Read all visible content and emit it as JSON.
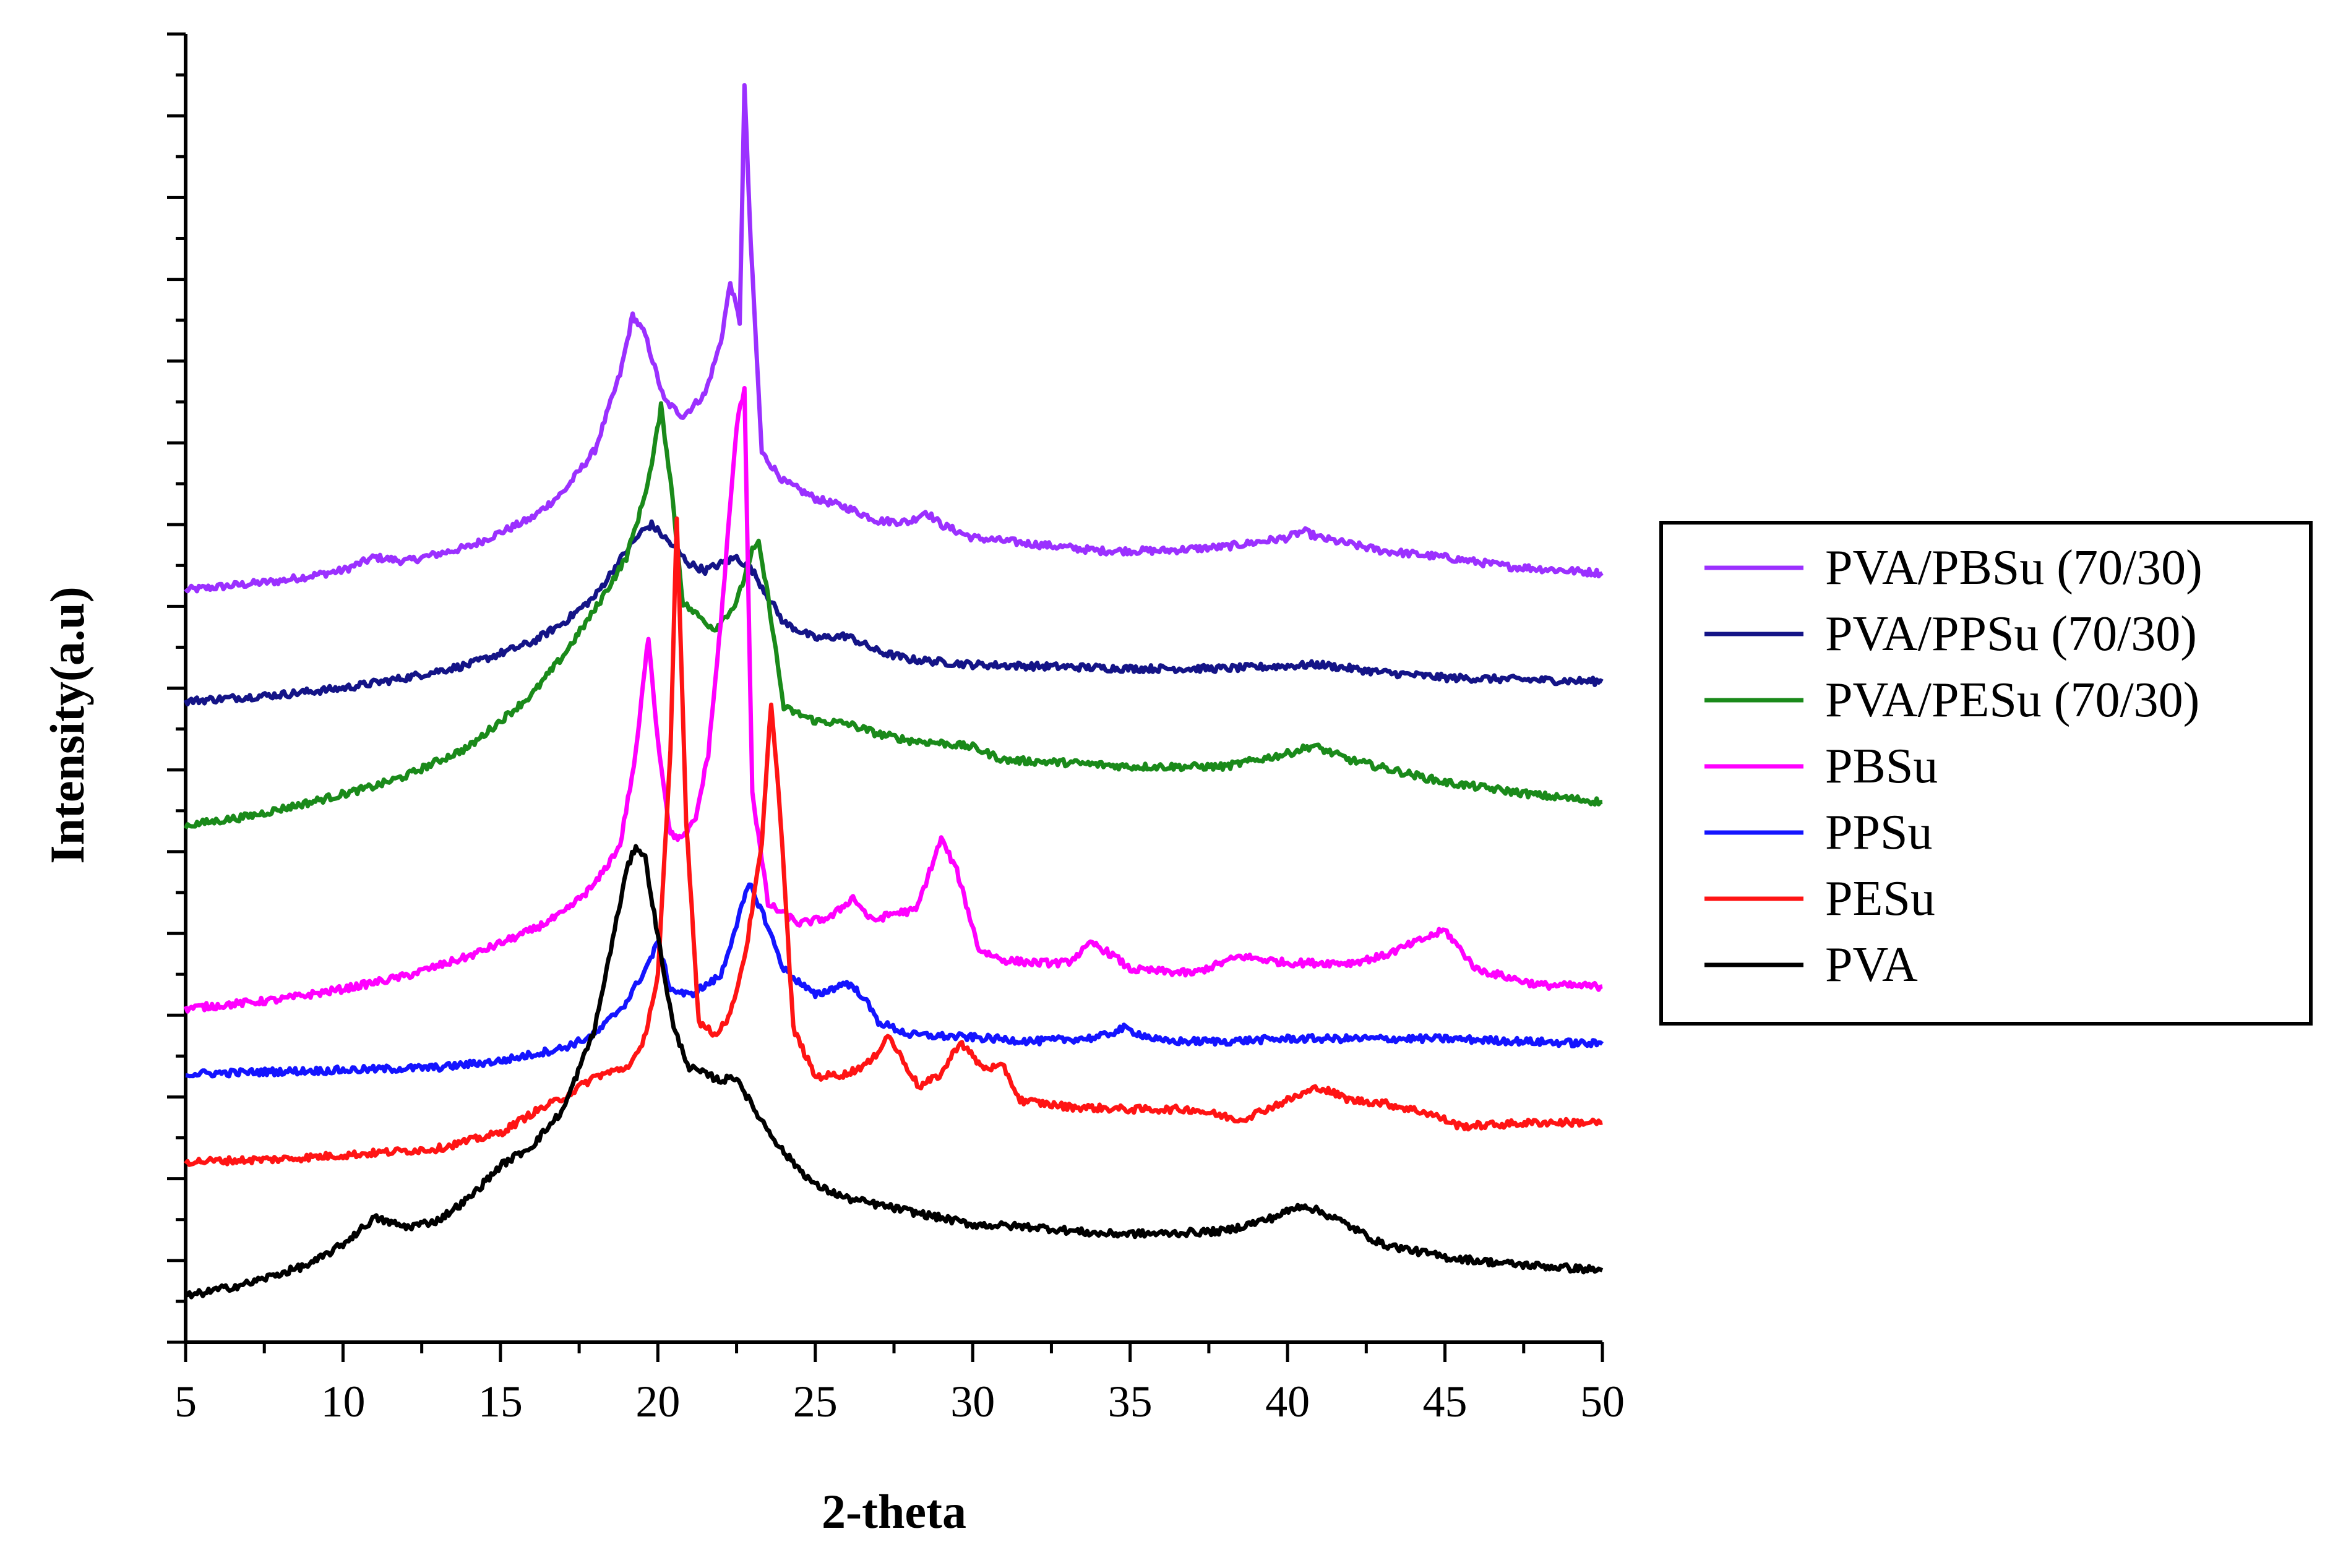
{
  "chart_data": {
    "type": "line",
    "title": "",
    "xlabel": "2-theta",
    "ylabel": "Intensity(a.u)",
    "xlim": [
      5,
      50
    ],
    "ylim": [
      0,
      100
    ],
    "xticks": [
      5,
      10,
      15,
      20,
      25,
      30,
      35,
      40,
      45,
      50
    ],
    "yticks_labeled": false,
    "legend_position": "right",
    "legend": [
      "PVA/PBSu (70/30)",
      "PVA/PPSu (70/30)",
      "PVA/PESu (70/30)",
      "PBSu",
      "PPSu",
      "PESu",
      "PVA"
    ],
    "series": [
      {
        "name": "PVA/PBSu (70/30)",
        "color": "#9b30ff",
        "points": [
          [
            5,
            57.5
          ],
          [
            8,
            58.2
          ],
          [
            10,
            59.0
          ],
          [
            11,
            60.0
          ],
          [
            12,
            59.7
          ],
          [
            14,
            60.8
          ],
          [
            16,
            63.0
          ],
          [
            17,
            65.0
          ],
          [
            18,
            68.2
          ],
          [
            18.8,
            74.0
          ],
          [
            19.2,
            78.5
          ],
          [
            19.6,
            77.0
          ],
          [
            20.2,
            72.0
          ],
          [
            20.8,
            70.8
          ],
          [
            21.5,
            72.5
          ],
          [
            22.0,
            76.5
          ],
          [
            22.3,
            81.0
          ],
          [
            22.6,
            78.0
          ],
          [
            22.75,
            96.0
          ],
          [
            22.95,
            84.0
          ],
          [
            23.3,
            68.0
          ],
          [
            24,
            65.8
          ],
          [
            25,
            64.5
          ],
          [
            26,
            63.8
          ],
          [
            27,
            62.8
          ],
          [
            28,
            62.7
          ],
          [
            28.5,
            63.5
          ],
          [
            29,
            62.5
          ],
          [
            30,
            61.5
          ],
          [
            32,
            61.0
          ],
          [
            34,
            60.5
          ],
          [
            36,
            60.5
          ],
          [
            38,
            60.8
          ],
          [
            40,
            61.5
          ],
          [
            40.5,
            62.0
          ],
          [
            41,
            61.5
          ],
          [
            43,
            60.5
          ],
          [
            45,
            60.0
          ],
          [
            47,
            59.3
          ],
          [
            50,
            58.8
          ]
        ]
      },
      {
        "name": "PVA/PPSu (70/30)",
        "color": "#141487",
        "points": [
          [
            5,
            49.0
          ],
          [
            8,
            49.5
          ],
          [
            10,
            50.0
          ],
          [
            12,
            50.8
          ],
          [
            14,
            51.8
          ],
          [
            16,
            53.5
          ],
          [
            17,
            55.0
          ],
          [
            18,
            57.0
          ],
          [
            19,
            60.5
          ],
          [
            19.5,
            62.0
          ],
          [
            19.8,
            62.5
          ],
          [
            20.3,
            61.3
          ],
          [
            21,
            59.5
          ],
          [
            21.5,
            59.0
          ],
          [
            22.0,
            59.5
          ],
          [
            22.5,
            60.0
          ],
          [
            23.0,
            59.0
          ],
          [
            23.5,
            57.0
          ],
          [
            24,
            55.0
          ],
          [
            25,
            53.8
          ],
          [
            26,
            54.0
          ],
          [
            27,
            52.8
          ],
          [
            28,
            52.2
          ],
          [
            30,
            51.8
          ],
          [
            35,
            51.5
          ],
          [
            38,
            51.5
          ],
          [
            40,
            51.7
          ],
          [
            41,
            51.8
          ],
          [
            43,
            51.2
          ],
          [
            45,
            50.8
          ],
          [
            50,
            50.5
          ]
        ]
      },
      {
        "name": "PVA/PESu (70/30)",
        "color": "#1a8a1a",
        "points": [
          [
            5,
            39.5
          ],
          [
            7,
            40.2
          ],
          [
            9,
            41.3
          ],
          [
            11,
            42.5
          ],
          [
            12,
            43.3
          ],
          [
            14,
            45.5
          ],
          [
            15,
            47.5
          ],
          [
            16,
            49.5
          ],
          [
            17,
            52.5
          ],
          [
            18,
            56.0
          ],
          [
            19,
            60.0
          ],
          [
            19.5,
            64.0
          ],
          [
            19.8,
            67.0
          ],
          [
            20.1,
            71.5
          ],
          [
            20.4,
            66.0
          ],
          [
            20.8,
            56.5
          ],
          [
            21.3,
            55.5
          ],
          [
            21.8,
            54.5
          ],
          [
            22.5,
            56.5
          ],
          [
            23.0,
            60.5
          ],
          [
            23.2,
            61.0
          ],
          [
            23.5,
            57.0
          ],
          [
            24,
            48.5
          ],
          [
            25,
            47.5
          ],
          [
            26,
            47.3
          ],
          [
            27,
            46.5
          ],
          [
            28,
            46.0
          ],
          [
            29,
            45.8
          ],
          [
            30,
            45.5
          ],
          [
            31,
            44.5
          ],
          [
            33,
            44.3
          ],
          [
            35,
            44.0
          ],
          [
            38,
            44.0
          ],
          [
            40,
            45.0
          ],
          [
            40.8,
            45.6
          ],
          [
            42,
            44.5
          ],
          [
            45,
            42.8
          ],
          [
            48,
            41.8
          ],
          [
            50,
            41.3
          ]
        ]
      },
      {
        "name": "PBSu",
        "color": "#ff00ff",
        "points": [
          [
            5,
            25.5
          ],
          [
            8,
            26.2
          ],
          [
            10,
            27.0
          ],
          [
            12,
            28.0
          ],
          [
            14,
            29.5
          ],
          [
            16,
            31.5
          ],
          [
            17,
            32.8
          ],
          [
            18,
            35.0
          ],
          [
            18.8,
            38.0
          ],
          [
            19.3,
            45.0
          ],
          [
            19.7,
            54.0
          ],
          [
            20.0,
            46.0
          ],
          [
            20.4,
            38.8
          ],
          [
            20.8,
            38.5
          ],
          [
            21.2,
            40.0
          ],
          [
            21.6,
            45.0
          ],
          [
            22.0,
            55.0
          ],
          [
            22.3,
            64.0
          ],
          [
            22.5,
            70.0
          ],
          [
            22.75,
            73.0
          ],
          [
            23.0,
            42.0
          ],
          [
            23.5,
            33.5
          ],
          [
            24.5,
            32.0
          ],
          [
            25.5,
            32.5
          ],
          [
            26.2,
            34.0
          ],
          [
            26.8,
            32.2
          ],
          [
            27.5,
            32.8
          ],
          [
            28.2,
            33.0
          ],
          [
            29.0,
            38.5
          ],
          [
            29.5,
            36.0
          ],
          [
            30.2,
            30.0
          ],
          [
            31,
            29.2
          ],
          [
            32,
            29.0
          ],
          [
            33,
            29.0
          ],
          [
            33.8,
            30.5
          ],
          [
            34.5,
            29.5
          ],
          [
            35,
            28.5
          ],
          [
            37,
            28.2
          ],
          [
            38.5,
            29.5
          ],
          [
            40,
            29.0
          ],
          [
            42,
            29.0
          ],
          [
            43,
            29.5
          ],
          [
            44.5,
            31.0
          ],
          [
            45,
            31.5
          ],
          [
            46,
            28.5
          ],
          [
            48,
            27.3
          ],
          [
            50,
            27.2
          ]
        ]
      },
      {
        "name": "PPSu",
        "color": "#1414ff",
        "points": [
          [
            5,
            20.5
          ],
          [
            8,
            20.7
          ],
          [
            10,
            20.8
          ],
          [
            13,
            21.0
          ],
          [
            15,
            21.5
          ],
          [
            16,
            22.0
          ],
          [
            17,
            22.5
          ],
          [
            18,
            23.5
          ],
          [
            19,
            26.0
          ],
          [
            19.6,
            28.5
          ],
          [
            20.0,
            30.5
          ],
          [
            20.4,
            27.0
          ],
          [
            21,
            26.5
          ],
          [
            22,
            28.0
          ],
          [
            22.5,
            32.0
          ],
          [
            22.9,
            35.0
          ],
          [
            23.3,
            33.0
          ],
          [
            24,
            28.5
          ],
          [
            25,
            26.5
          ],
          [
            26,
            27.5
          ],
          [
            26.5,
            26.5
          ],
          [
            27,
            24.5
          ],
          [
            28,
            23.5
          ],
          [
            30,
            23.3
          ],
          [
            32,
            23.0
          ],
          [
            34,
            23.3
          ],
          [
            34.8,
            24.0
          ],
          [
            36,
            23.0
          ],
          [
            38,
            23.0
          ],
          [
            40,
            23.2
          ],
          [
            45,
            23.2
          ],
          [
            50,
            22.8
          ]
        ]
      },
      {
        "name": "PESu",
        "color": "#ff1414",
        "points": [
          [
            5,
            13.8
          ],
          [
            8,
            14.0
          ],
          [
            10,
            14.3
          ],
          [
            13,
            14.8
          ],
          [
            15,
            16.0
          ],
          [
            16,
            17.5
          ],
          [
            17,
            18.7
          ],
          [
            18,
            20.3
          ],
          [
            19,
            21.0
          ],
          [
            19.5,
            22.5
          ],
          [
            20.0,
            28.0
          ],
          [
            20.4,
            45.0
          ],
          [
            20.6,
            63.0
          ],
          [
            20.9,
            40.0
          ],
          [
            21.3,
            24.5
          ],
          [
            21.8,
            23.5
          ],
          [
            22.3,
            25.0
          ],
          [
            22.8,
            30.0
          ],
          [
            23.3,
            38.0
          ],
          [
            23.6,
            49.0
          ],
          [
            23.9,
            40.0
          ],
          [
            24.3,
            24.0
          ],
          [
            25,
            20.3
          ],
          [
            26,
            20.5
          ],
          [
            26.8,
            21.5
          ],
          [
            27.3,
            23.5
          ],
          [
            27.8,
            21.5
          ],
          [
            28.3,
            19.5
          ],
          [
            29.0,
            20.5
          ],
          [
            29.6,
            23.0
          ],
          [
            30.3,
            21.0
          ],
          [
            31,
            21.0
          ],
          [
            31.5,
            18.5
          ],
          [
            33,
            18.0
          ],
          [
            35,
            17.8
          ],
          [
            37,
            17.8
          ],
          [
            38.5,
            17.0
          ],
          [
            40,
            18.5
          ],
          [
            41,
            19.5
          ],
          [
            42,
            18.5
          ],
          [
            43,
            18.3
          ],
          [
            44.5,
            17.5
          ],
          [
            45.5,
            16.5
          ],
          [
            48,
            16.8
          ],
          [
            50,
            16.8
          ]
        ]
      },
      {
        "name": "PVA",
        "color": "#000000",
        "points": [
          [
            5,
            3.5
          ],
          [
            7,
            4.5
          ],
          [
            9,
            6.0
          ],
          [
            10,
            7.5
          ],
          [
            11,
            9.5
          ],
          [
            12,
            8.8
          ],
          [
            13,
            9.3
          ],
          [
            14,
            11.0
          ],
          [
            15,
            13.5
          ],
          [
            16,
            15.0
          ],
          [
            17,
            17.8
          ],
          [
            18,
            24.0
          ],
          [
            18.5,
            30.0
          ],
          [
            19.0,
            36.0
          ],
          [
            19.3,
            38.0
          ],
          [
            19.6,
            37.0
          ],
          [
            20.0,
            31.0
          ],
          [
            20.5,
            24.0
          ],
          [
            21.0,
            21.0
          ],
          [
            22.0,
            20.0
          ],
          [
            22.5,
            20.3
          ],
          [
            23.0,
            18.0
          ],
          [
            24,
            14.5
          ],
          [
            25,
            12.0
          ],
          [
            26,
            11.0
          ],
          [
            28,
            10.0
          ],
          [
            30,
            9.0
          ],
          [
            32,
            8.8
          ],
          [
            34,
            8.3
          ],
          [
            36,
            8.3
          ],
          [
            38,
            8.5
          ],
          [
            39.5,
            9.5
          ],
          [
            40.5,
            10.5
          ],
          [
            41.5,
            9.5
          ],
          [
            43,
            7.5
          ],
          [
            45,
            6.5
          ],
          [
            47,
            6.0
          ],
          [
            50,
            5.5
          ]
        ]
      }
    ]
  }
}
